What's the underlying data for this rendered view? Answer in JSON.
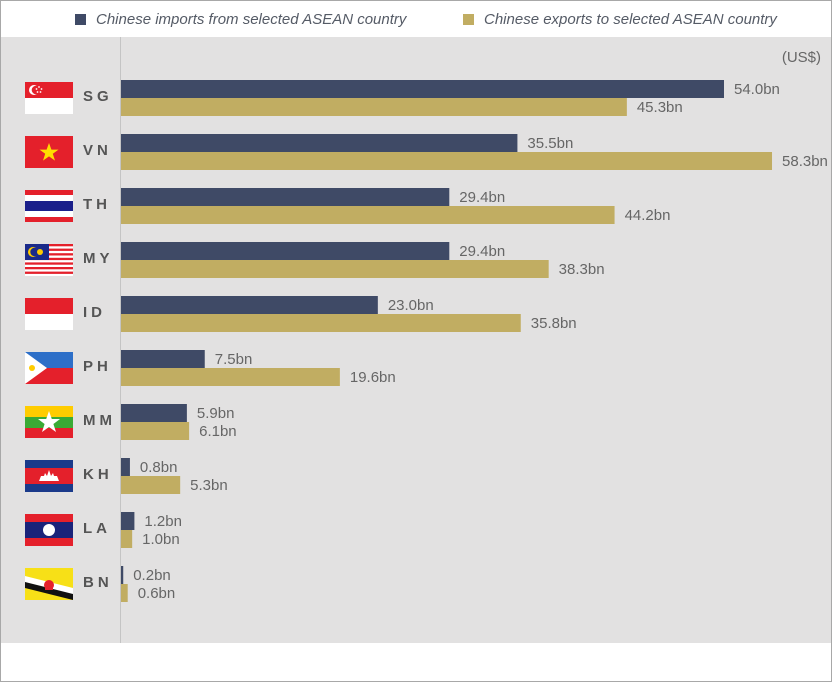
{
  "chart_data": {
    "type": "bar",
    "orientation": "horizontal",
    "unit_label": "(US$)",
    "value_suffix": "bn",
    "categories": [
      "SG",
      "VN",
      "TH",
      "MY",
      "ID",
      "PH",
      "MM",
      "KH",
      "LA",
      "BN"
    ],
    "flags": [
      "singapore-flag",
      "vietnam-flag",
      "thailand-flag",
      "malaysia-flag",
      "indonesia-flag",
      "philippines-flag",
      "myanmar-flag",
      "cambodia-flag",
      "laos-flag",
      "brunei-flag"
    ],
    "series": [
      {
        "name": "Chinese imports from selected ASEAN country",
        "color": "#3f4a66",
        "values": [
          54.0,
          35.5,
          29.4,
          29.4,
          23.0,
          7.5,
          5.9,
          0.8,
          1.2,
          0.2
        ]
      },
      {
        "name": "Chinese exports to selected ASEAN country",
        "color": "#c1ad62",
        "values": [
          45.3,
          58.3,
          44.2,
          38.3,
          35.8,
          19.6,
          6.1,
          5.3,
          1.0,
          0.6
        ]
      }
    ],
    "xlim": [
      0,
      60
    ],
    "grid": false,
    "legend": "top"
  }
}
